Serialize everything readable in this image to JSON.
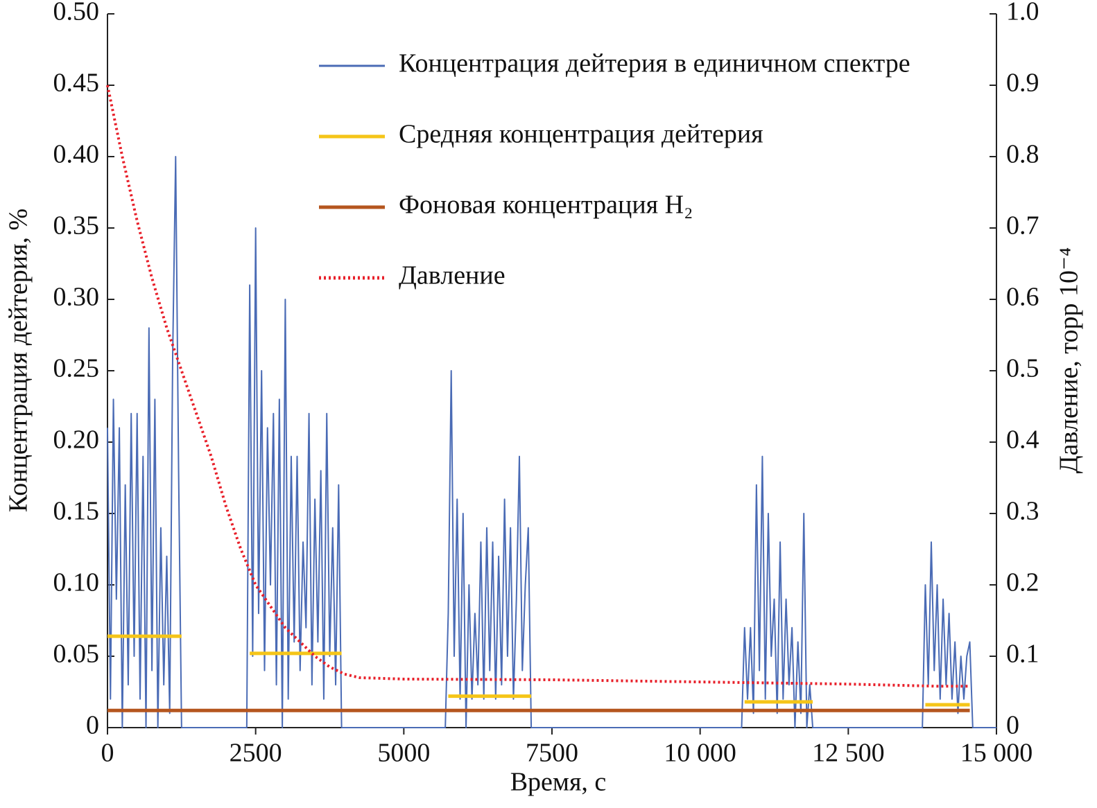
{
  "chart_data": {
    "type": "line",
    "xlabel": "Время, с",
    "ylabel": "Концентрация дейтерия, %",
    "y2label": "Давление, торр 10⁻⁴",
    "xlim": [
      0,
      15000
    ],
    "xticks": [
      0,
      2500,
      5000,
      7500,
      {
        "value": 10000,
        "label": "10 000"
      },
      {
        "value": 12500,
        "label": "12 500"
      },
      {
        "value": 15000,
        "label": "15 000"
      }
    ],
    "ylim": [
      0,
      0.5
    ],
    "yticks": [
      0,
      0.05,
      {
        "value": 0.1,
        "label": "0.10"
      },
      0.15,
      {
        "value": 0.2,
        "label": "0.20"
      },
      0.25,
      {
        "value": 0.3,
        "label": "0.30"
      },
      0.35,
      {
        "value": 0.4,
        "label": "0.40"
      },
      0.45,
      {
        "value": 0.5,
        "label": "0.50"
      }
    ],
    "y2lim": [
      0,
      1
    ],
    "y2ticks": [
      0,
      0.1,
      0.2,
      0.3,
      0.4,
      0.5,
      0.6,
      0.7,
      0.8,
      0.9,
      {
        "value": 1,
        "label": "1.0"
      }
    ],
    "series": [
      {
        "name": "Концентрация дейтерия в единичном спектре",
        "color": "#4a6bb5",
        "line_style": "solid",
        "x": [
          0,
          50,
          100,
          150,
          200,
          250,
          300,
          350,
          400,
          450,
          500,
          550,
          600,
          650,
          700,
          750,
          800,
          850,
          900,
          950,
          1000,
          1050,
          1100,
          1150,
          1200,
          1250,
          1300,
          2350,
          2400,
          2450,
          2500,
          2550,
          2600,
          2650,
          2700,
          2750,
          2800,
          2850,
          2900,
          2950,
          3000,
          3050,
          3100,
          3150,
          3200,
          3250,
          3300,
          3350,
          3400,
          3450,
          3500,
          3550,
          3600,
          3650,
          3700,
          3750,
          3800,
          3850,
          3900,
          3950,
          4000,
          5700,
          5750,
          5800,
          5850,
          5900,
          5950,
          6000,
          6050,
          6100,
          6150,
          6200,
          6250,
          6300,
          6350,
          6400,
          6450,
          6500,
          6550,
          6600,
          6650,
          6700,
          6750,
          6800,
          6850,
          6900,
          6950,
          7000,
          7050,
          7100,
          7150,
          7200,
          10700,
          10750,
          10800,
          10850,
          10900,
          10950,
          11000,
          11050,
          11100,
          11150,
          11200,
          11250,
          11300,
          11350,
          11400,
          11450,
          11500,
          11550,
          11600,
          11650,
          11700,
          11750,
          11800,
          11850,
          11900,
          11950,
          13750,
          13800,
          13850,
          13900,
          13950,
          14000,
          14050,
          14100,
          14150,
          14200,
          14250,
          14300,
          14350,
          14400,
          14450,
          14500,
          14550,
          14600,
          15000
        ],
        "values": [
          0.21,
          0.02,
          0.23,
          0.09,
          0.21,
          0,
          0.17,
          0.03,
          0.22,
          0.05,
          0.22,
          0.02,
          0.19,
          0,
          0.28,
          0.04,
          0.23,
          0,
          0.14,
          0.03,
          0.12,
          0.01,
          0.26,
          0.4,
          0.18,
          0,
          0,
          0,
          0.31,
          0.05,
          0.35,
          0.08,
          0.25,
          0.04,
          0.21,
          0.1,
          0.22,
          0.03,
          0.23,
          0,
          0.3,
          0.02,
          0.19,
          0.06,
          0.19,
          0.04,
          0.13,
          0.07,
          0.22,
          0.03,
          0.16,
          0.06,
          0.18,
          0.02,
          0.22,
          0.05,
          0.14,
          0.03,
          0.17,
          0,
          0,
          0,
          0.08,
          0.25,
          0.05,
          0.16,
          0.02,
          0.15,
          0,
          0.1,
          0.02,
          0.08,
          0.03,
          0.13,
          0.02,
          0.14,
          0.04,
          0.13,
          0.02,
          0.12,
          0.03,
          0.16,
          0.05,
          0.14,
          0.02,
          0.09,
          0.19,
          0.04,
          0.1,
          0.14,
          0,
          0,
          0,
          0.07,
          0.02,
          0.07,
          0.01,
          0.17,
          0.04,
          0.19,
          0.02,
          0.15,
          0.05,
          0.09,
          0.01,
          0.13,
          0.02,
          0.09,
          0.03,
          0.07,
          0,
          0.06,
          0.01,
          0.15,
          0,
          0.03,
          0,
          0,
          0,
          0.1,
          0.03,
          0.13,
          0.04,
          0.1,
          0.02,
          0.09,
          0.03,
          0.08,
          0.02,
          0.06,
          0.01,
          0.05,
          0.02,
          0.05,
          0.06,
          0,
          0
        ]
      },
      {
        "name": "Средняя концентрация дейтерия",
        "color": "#f5c518",
        "line_style": "solid",
        "x": [
          0,
          1250,
          1250,
          2400,
          3950,
          3950,
          5750,
          7150,
          7150,
          10750,
          11900,
          11900,
          13800,
          14550
        ],
        "values": [
          0.064,
          0.064,
          null,
          0.052,
          0.052,
          null,
          0.022,
          0.022,
          null,
          0.018,
          0.018,
          null,
          0.016,
          0.016
        ]
      },
      {
        "name": "Фоновая концентрация H₂",
        "color": "#b5561e",
        "line_style": "solid",
        "x": [
          0,
          14550
        ],
        "values": [
          0.012,
          0.012
        ]
      },
      {
        "name": "Давление",
        "color": "#e8202a",
        "line_style": "dotted",
        "axis": "y2",
        "x": [
          0,
          250,
          500,
          750,
          1000,
          1250,
          1500,
          1750,
          2000,
          2250,
          2500,
          2750,
          3000,
          3250,
          3500,
          3750,
          4000,
          4250,
          5000,
          7500,
          10000,
          12500,
          14000,
          14550
        ],
        "values": [
          0.9,
          0.8,
          0.71,
          0.63,
          0.56,
          0.5,
          0.44,
          0.38,
          0.31,
          0.25,
          0.2,
          0.17,
          0.14,
          0.12,
          0.1,
          0.085,
          0.075,
          0.07,
          0.068,
          0.067,
          0.064,
          0.061,
          0.058,
          0.058
        ]
      }
    ]
  }
}
